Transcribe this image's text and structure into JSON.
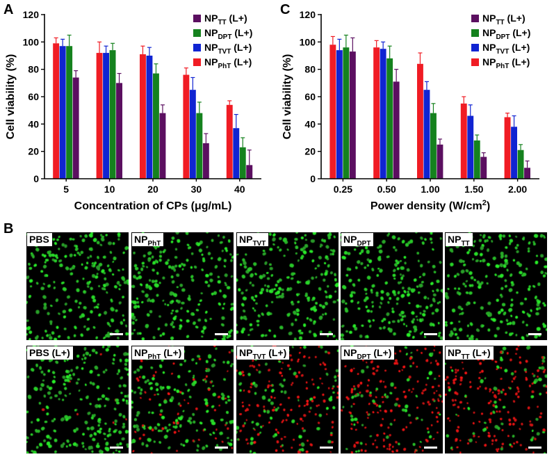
{
  "panel_letters": {
    "a": "A",
    "b": "B",
    "c": "C"
  },
  "colors": {
    "tt": "#5b0f60",
    "dpt": "#15821e",
    "tvt": "#1024d2",
    "pht": "#f01c24"
  },
  "chart_data": [
    {
      "type": "bar",
      "xlabel": "Concentration of CPs (μg/mL)",
      "ylabel": "Cell viability (%)",
      "ylim": [
        0,
        120
      ],
      "yticks": [
        "0",
        "20",
        "40",
        "60",
        "80",
        "100",
        "120"
      ],
      "categories": [
        "5",
        "10",
        "20",
        "30",
        "40"
      ],
      "legend_position": "top-right",
      "series": [
        {
          "name": "NP",
          "sub": "PhT",
          "suffix": " (L+)",
          "key": "pht",
          "values": [
            99,
            92,
            91,
            76,
            54
          ],
          "errors": [
            4,
            8,
            6,
            5,
            3
          ]
        },
        {
          "name": "NP",
          "sub": "TVT",
          "suffix": " (L+)",
          "key": "tvt",
          "values": [
            97,
            92,
            90,
            65,
            37
          ],
          "errors": [
            5,
            5,
            6,
            9,
            10
          ]
        },
        {
          "name": "NP",
          "sub": "DPT",
          "suffix": " (L+)",
          "key": "dpt",
          "values": [
            97,
            94,
            77,
            48,
            23
          ],
          "errors": [
            8,
            5,
            7,
            8,
            7
          ]
        },
        {
          "name": "NP",
          "sub": "TT",
          "suffix": " (L+)",
          "key": "tt",
          "values": [
            74,
            70,
            48,
            26,
            10
          ],
          "errors": [
            5,
            7,
            6,
            7,
            11
          ]
        }
      ],
      "legend_order": [
        "tt",
        "dpt",
        "tvt",
        "pht"
      ]
    },
    {
      "type": "bar",
      "xlabel": "Power density (W/cm",
      "xlabel_sup": "2",
      "xlabel_end": ")",
      "ylabel": "Cell viability (%)",
      "ylim": [
        0,
        120
      ],
      "yticks": [
        "0",
        "20",
        "40",
        "60",
        "80",
        "100",
        "120"
      ],
      "categories": [
        "0.25",
        "0.50",
        "1.00",
        "1.50",
        "2.00"
      ],
      "legend_position": "top-right",
      "series": [
        {
          "name": "NP",
          "sub": "PhT",
          "suffix": " (L+)",
          "key": "pht",
          "values": [
            98,
            96,
            84,
            55,
            45
          ],
          "errors": [
            6,
            5,
            8,
            5,
            3
          ]
        },
        {
          "name": "NP",
          "sub": "TVT",
          "suffix": " (L+)",
          "key": "tvt",
          "values": [
            94,
            95,
            65,
            46,
            38
          ],
          "errors": [
            8,
            5,
            6,
            8,
            8
          ]
        },
        {
          "name": "NP",
          "sub": "DPT",
          "suffix": " (L+)",
          "key": "dpt",
          "values": [
            96,
            88,
            48,
            28,
            21
          ],
          "errors": [
            9,
            9,
            7,
            4,
            4
          ]
        },
        {
          "name": "NP",
          "sub": "TT",
          "suffix": " (L+)",
          "key": "tt",
          "values": [
            93,
            71,
            25,
            16,
            8
          ],
          "errors": [
            10,
            9,
            4,
            3,
            5
          ]
        }
      ],
      "legend_order": [
        "tt",
        "dpt",
        "tvt",
        "pht"
      ]
    }
  ],
  "micrographs": {
    "top_row": [
      {
        "label": "PBS",
        "sub": "",
        "suffix": "",
        "red_fraction": 0.0
      },
      {
        "label": "NP",
        "sub": "PhT",
        "suffix": "",
        "red_fraction": 0.0
      },
      {
        "label": "NP",
        "sub": "TVT",
        "suffix": "",
        "red_fraction": 0.0
      },
      {
        "label": "NP",
        "sub": "DPT",
        "suffix": "",
        "red_fraction": 0.0
      },
      {
        "label": "NP",
        "sub": "TT",
        "suffix": "",
        "red_fraction": 0.0
      }
    ],
    "bottom_row": [
      {
        "label": "PBS (L+)",
        "sub": "",
        "suffix": "",
        "red_fraction": 0.02
      },
      {
        "label": "NP",
        "sub": "PhT",
        "suffix": " (L+)",
        "red_fraction": 0.25
      },
      {
        "label": "NP",
        "sub": "TVT",
        "suffix": " (L+)",
        "red_fraction": 0.65
      },
      {
        "label": "NP",
        "sub": "DPT",
        "suffix": " (L+)",
        "red_fraction": 0.72
      },
      {
        "label": "NP",
        "sub": "TT",
        "suffix": " (L+)",
        "red_fraction": 0.78
      }
    ]
  }
}
